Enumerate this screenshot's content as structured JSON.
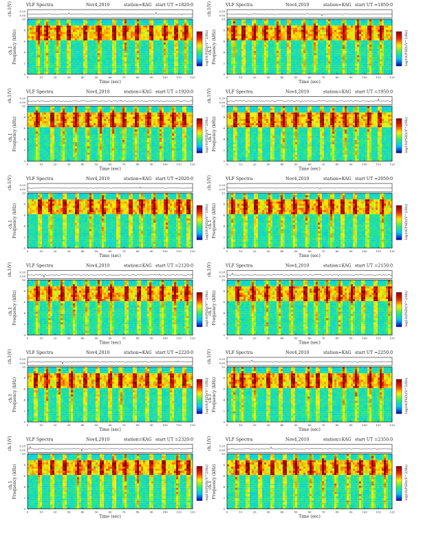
{
  "chart_data": [
    {
      "type": "heatmap",
      "title": "VLF Spectra",
      "date": "Nov4,2010",
      "station": "station=KAG",
      "start": "start UT =1820:0",
      "top_ylabel": "ch.1(V)",
      "ylabel": "Frequency (kHz)",
      "ylabel_prefix": "ch.1",
      "xlabel": "Time (sec)",
      "colorbar_label": "log10(PSD)(V^2/Hz)",
      "x_ticks": [
        0,
        10,
        20,
        30,
        40,
        50,
        60,
        70,
        80,
        90,
        100,
        110,
        120
      ],
      "y_ticks": [
        0,
        2,
        4,
        6,
        8,
        10
      ],
      "top_ticks": [
        "0.00",
        "0.20"
      ],
      "xlim": [
        0,
        120
      ],
      "ylim": [
        0,
        10
      ],
      "band_hz": [
        6,
        9
      ],
      "bursts": [
        8,
        14,
        22,
        30,
        42,
        52,
        63,
        71,
        80,
        90,
        100,
        108,
        115
      ]
    },
    {
      "type": "heatmap",
      "title": "VLF Spectra",
      "date": "Nov4,2010",
      "station": "station=KAG",
      "start": "start UT =1850:0",
      "top_ylabel": "ch.1(V)",
      "ylabel": "Frequency (kHz)",
      "ylabel_prefix": "ch.1",
      "xlabel": "Time (sec)",
      "colorbar_label": "log10(PSD)(V^2/Hz)",
      "x_ticks": [
        0,
        10,
        20,
        30,
        40,
        50,
        60,
        70,
        80,
        90,
        100,
        110,
        120
      ],
      "y_ticks": [
        0,
        2,
        4,
        6,
        8,
        10
      ],
      "top_ticks": [
        "0.00",
        "0.20"
      ],
      "xlim": [
        0,
        120
      ],
      "ylim": [
        0,
        10
      ],
      "band_hz": [
        6,
        9
      ],
      "bursts": [
        5,
        12,
        20,
        28,
        37,
        45,
        56,
        64,
        74,
        85,
        95,
        104,
        112
      ]
    },
    {
      "type": "heatmap",
      "title": "VLF Spectra",
      "date": "Nov4,2010",
      "station": "station=KAG",
      "start": "start UT =1920:0",
      "top_ylabel": "ch.1(V)",
      "ylabel": "Frequency (kHz)",
      "ylabel_prefix": "ch.1",
      "xlabel": "Time (sec)",
      "colorbar_label": "log10(PSD)(V^2/Hz)",
      "x_ticks": [
        0,
        10,
        20,
        30,
        40,
        50,
        60,
        70,
        80,
        90,
        100,
        110,
        120
      ],
      "y_ticks": [
        0,
        2,
        4,
        6,
        8,
        10
      ],
      "top_ticks": [
        "0.00",
        "0.20"
      ],
      "xlim": [
        0,
        120
      ],
      "ylim": [
        0,
        10
      ],
      "band_hz": [
        6,
        9
      ],
      "bursts": [
        7,
        18,
        26,
        35,
        44,
        53,
        62,
        70,
        79,
        88,
        97,
        106,
        114
      ]
    },
    {
      "type": "heatmap",
      "title": "VLF Spectra",
      "date": "Nov4,2010",
      "station": "station=KAG",
      "start": "start UT =1950:0",
      "top_ylabel": "ch.1(V)",
      "ylabel": "Frequency (kHz)",
      "ylabel_prefix": "ch.1",
      "xlabel": "Time (sec)",
      "colorbar_label": "log10(PSD)(V^2/Hz)",
      "x_ticks": [
        0,
        10,
        20,
        30,
        40,
        50,
        60,
        70,
        80,
        90,
        100,
        110,
        120
      ],
      "y_ticks": [
        0,
        2,
        4,
        6,
        8,
        10
      ],
      "top_ticks": [
        "0.00",
        "0.20"
      ],
      "xlim": [
        0,
        120
      ],
      "ylim": [
        0,
        10
      ],
      "band_hz": [
        6,
        9
      ],
      "bursts": [
        6,
        15,
        24,
        33,
        41,
        50,
        60,
        69,
        77,
        86,
        94,
        103,
        111
      ]
    },
    {
      "type": "heatmap",
      "title": "VLF Spectra",
      "date": "Nov4,2010",
      "station": "station=KAG",
      "start": "start UT =2020:0",
      "top_ylabel": "ch.1(V)",
      "ylabel": "Frequency (kHz)",
      "ylabel_prefix": "ch.1",
      "xlabel": "Time (sec)",
      "colorbar_label": "log10(PSD)(V^2/Hz)",
      "x_ticks": [
        0,
        10,
        20,
        30,
        40,
        50,
        60,
        70,
        80,
        90,
        100,
        110,
        120
      ],
      "y_ticks": [
        0,
        2,
        4,
        6,
        8,
        10
      ],
      "top_ticks": [
        "0.00",
        "0.20"
      ],
      "xlim": [
        0,
        120
      ],
      "ylim": [
        0,
        10
      ],
      "band_hz": [
        6,
        9
      ],
      "bursts": [
        9,
        17,
        27,
        36,
        46,
        55,
        66,
        75,
        83,
        92,
        101,
        110,
        117
      ]
    },
    {
      "type": "heatmap",
      "title": "VLF Spectra",
      "date": "Nov4,2010",
      "station": "station=KAG",
      "start": "start UT =2050:0",
      "top_ylabel": "ch.1(V)",
      "ylabel": "Frequency (kHz)",
      "ylabel_prefix": "ch.1",
      "xlabel": "Time (sec)",
      "colorbar_label": "log10(PSD)(V^2/Hz)",
      "x_ticks": [
        0,
        10,
        20,
        30,
        40,
        50,
        60,
        70,
        80,
        90,
        100,
        110,
        120
      ],
      "y_ticks": [
        0,
        2,
        4,
        6,
        8,
        10
      ],
      "top_ticks": [
        "0.00",
        "0.20"
      ],
      "xlim": [
        0,
        120
      ],
      "ylim": [
        0,
        10
      ],
      "band_hz": [
        6,
        9
      ],
      "bursts": [
        4,
        13,
        21,
        31,
        40,
        49,
        58,
        67,
        76,
        84,
        93,
        102,
        113
      ]
    },
    {
      "type": "heatmap",
      "title": "VLF Spectra",
      "date": "Nov4,2010",
      "station": "station=KAG",
      "start": "start UT =2120:0",
      "top_ylabel": "ch.1(V)",
      "ylabel": "Frequency (kHz)",
      "ylabel_prefix": "ch.1",
      "xlabel": "Time (sec)",
      "colorbar_label": "log10(PSD)(V^2/Hz)",
      "x_ticks": [
        0,
        10,
        20,
        30,
        40,
        50,
        60,
        70,
        80,
        90,
        100,
        110,
        120
      ],
      "y_ticks": [
        0,
        2,
        4,
        6,
        8,
        10
      ],
      "top_ticks": [
        "0.00",
        "0.20"
      ],
      "xlim": [
        0,
        120
      ],
      "ylim": [
        0,
        10
      ],
      "band_hz": [
        6,
        9
      ],
      "bursts": [
        7,
        16,
        25,
        34,
        43,
        52,
        61,
        72,
        81,
        89,
        98,
        107,
        116
      ]
    },
    {
      "type": "heatmap",
      "title": "VLF Spectra",
      "date": "Nov4,2010",
      "station": "station=KAG",
      "start": "start UT =2150:0",
      "top_ylabel": "ch.1(V)",
      "ylabel": "Frequency (kHz)",
      "ylabel_prefix": "ch.1",
      "xlabel": "Time (sec)",
      "colorbar_label": "log10(PSD)(V^2/Hz)",
      "x_ticks": [
        0,
        10,
        20,
        30,
        40,
        50,
        60,
        70,
        80,
        90,
        100,
        110,
        120
      ],
      "y_ticks": [
        0,
        2,
        4,
        6,
        8,
        10
      ],
      "top_ticks": [
        "0.00",
        "0.20"
      ],
      "xlim": [
        0,
        120
      ],
      "ylim": [
        0,
        10
      ],
      "band_hz": [
        6,
        9
      ],
      "bursts": [
        8,
        19,
        29,
        38,
        47,
        57,
        65,
        73,
        82,
        91,
        99,
        108,
        118
      ]
    },
    {
      "type": "heatmap",
      "title": "VLF Spectra",
      "date": "Nov4,2010",
      "station": "station=KAG",
      "start": "start UT =2220:0",
      "top_ylabel": "ch.1(V)",
      "ylabel": "Frequency (kHz)",
      "ylabel_prefix": "ch.1",
      "xlabel": "Time (sec)",
      "colorbar_label": "log10(PSD)(V^2/Hz)",
      "x_ticks": [
        0,
        10,
        20,
        30,
        40,
        50,
        60,
        70,
        80,
        90,
        100,
        110,
        120
      ],
      "y_ticks": [
        0,
        2,
        4,
        6,
        8,
        10
      ],
      "top_ticks": [
        "0.00",
        "0.20"
      ],
      "xlim": [
        0,
        120
      ],
      "ylim": [
        0,
        10
      ],
      "band_hz": [
        6,
        9
      ],
      "bursts": [
        6,
        14,
        23,
        32,
        42,
        51,
        60,
        68,
        78,
        87,
        96,
        105,
        114
      ]
    },
    {
      "type": "heatmap",
      "title": "VLF Spectra",
      "date": "Nov4,2010",
      "station": "station=KAG",
      "start": "start UT =2250:0",
      "top_ylabel": "ch.1(V)",
      "ylabel": "Frequency (kHz)",
      "ylabel_prefix": "ch.1",
      "xlabel": "Time (sec)",
      "colorbar_label": "log10(PSD)(V^2/Hz)",
      "x_ticks": [
        0,
        10,
        20,
        30,
        40,
        50,
        60,
        70,
        80,
        90,
        100,
        110,
        120
      ],
      "y_ticks": [
        0,
        2,
        4,
        6,
        8,
        10
      ],
      "top_ticks": [
        "0.00",
        "0.20"
      ],
      "xlim": [
        0,
        120
      ],
      "ylim": [
        0,
        10
      ],
      "band_hz": [
        6,
        9
      ],
      "bursts": [
        5,
        11,
        20,
        30,
        39,
        48,
        59,
        66,
        75,
        85,
        94,
        104,
        112
      ]
    },
    {
      "type": "heatmap",
      "title": "VLF Spectra",
      "date": "Nov4,2010",
      "station": "station=KAG",
      "start": "start UT =2320:0",
      "top_ylabel": "ch.1(V)",
      "ylabel": "Frequency (kHz)",
      "ylabel_prefix": "ch.1",
      "xlabel": "Time (sec)",
      "colorbar_label": "log10(PSD)(V^2/Hz)",
      "x_ticks": [
        0,
        10,
        20,
        30,
        40,
        50,
        60,
        70,
        80,
        90,
        100,
        110,
        120
      ],
      "y_ticks": [
        0,
        2,
        4,
        6,
        8,
        10
      ],
      "top_ticks": [
        "0.00",
        "0.20"
      ],
      "xlim": [
        0,
        120
      ],
      "ylim": [
        0,
        10
      ],
      "band_hz": [
        6,
        9
      ],
      "bursts": [
        9,
        18,
        27,
        37,
        45,
        54,
        63,
        71,
        80,
        90,
        99,
        109,
        117
      ]
    },
    {
      "type": "heatmap",
      "title": "VLF Spectra",
      "date": "Nov4,2010",
      "station": "station=KAG",
      "start": "start UT =2350:0",
      "top_ylabel": "ch.1(V)",
      "ylabel": "Frequency (kHz)",
      "ylabel_prefix": "ch.1",
      "xlabel": "Time (sec)",
      "colorbar_label": "log10(PSD)(V^2/Hz)",
      "x_ticks": [
        0,
        10,
        20,
        30,
        40,
        50,
        60,
        70,
        80,
        90,
        100,
        110,
        120
      ],
      "y_ticks": [
        0,
        2,
        4,
        6,
        8,
        10
      ],
      "top_ticks": [
        "0.00",
        "0.20"
      ],
      "xlim": [
        0,
        120
      ],
      "ylim": [
        0,
        10
      ],
      "band_hz": [
        6,
        9
      ],
      "bursts": [
        7,
        15,
        24,
        33,
        42,
        50,
        61,
        70,
        79,
        88,
        97,
        106,
        115
      ]
    }
  ],
  "colors": {
    "low": "#0000b4",
    "mid_low": "#00c8ff",
    "mid": "#33ee66",
    "mid_high": "#ffee00",
    "high": "#ee2200",
    "peak": "#8b0000",
    "frame": "#111111"
  }
}
